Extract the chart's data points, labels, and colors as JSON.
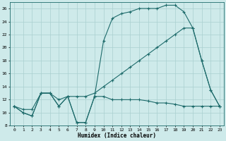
{
  "xlabel": "Humidex (Indice chaleur)",
  "background_color": "#ceeaea",
  "grid_color": "#aacfcf",
  "line_color": "#1e6b6b",
  "xlim": [
    -0.5,
    23.5
  ],
  "ylim": [
    8,
    27
  ],
  "xticks": [
    0,
    1,
    2,
    3,
    4,
    5,
    6,
    7,
    8,
    9,
    10,
    11,
    12,
    13,
    14,
    15,
    16,
    17,
    18,
    19,
    20,
    21,
    22,
    23
  ],
  "yticks": [
    8,
    10,
    12,
    14,
    16,
    18,
    20,
    22,
    24,
    26
  ],
  "line1_x": [
    0,
    1,
    2,
    3,
    4,
    5,
    6,
    7,
    8,
    9,
    10,
    11,
    12,
    13,
    14,
    15,
    16,
    17,
    18,
    19,
    20,
    21,
    22,
    23
  ],
  "line1_y": [
    11,
    10,
    9.5,
    13,
    13,
    11,
    12.5,
    8.5,
    8.5,
    12.5,
    12.5,
    12,
    12,
    12,
    12,
    11.8,
    11.5,
    11.5,
    11.3,
    11,
    11,
    11,
    11,
    11
  ],
  "line2_x": [
    0,
    1,
    2,
    3,
    4,
    5,
    6,
    7,
    8,
    9,
    10,
    11,
    12,
    13,
    14,
    15,
    16,
    17,
    18,
    19,
    20,
    21,
    22,
    23
  ],
  "line2_y": [
    11,
    10,
    9.5,
    13,
    13,
    11,
    12.5,
    8.5,
    8.5,
    12.5,
    21,
    24.5,
    25.2,
    25.5,
    26,
    26,
    26,
    26.5,
    26.5,
    25.5,
    23,
    18,
    13.5,
    11
  ],
  "line3_x": [
    0,
    1,
    2,
    3,
    4,
    5,
    6,
    7,
    8,
    9,
    10,
    11,
    12,
    13,
    14,
    15,
    16,
    17,
    18,
    19,
    20,
    21,
    22,
    23
  ],
  "line3_y": [
    11,
    10.5,
    10.5,
    13,
    13,
    12,
    12.5,
    12.5,
    12.5,
    13,
    14,
    15,
    16,
    17,
    18,
    19,
    20,
    21,
    22,
    23,
    23,
    18,
    13.5,
    11
  ]
}
